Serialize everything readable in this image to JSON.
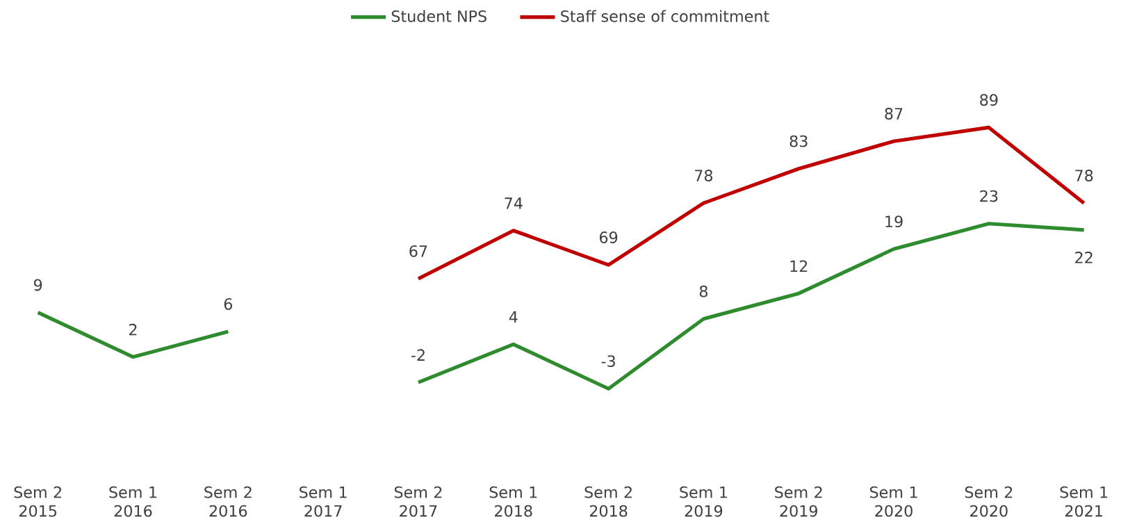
{
  "chart_data": {
    "type": "line",
    "categories": [
      "Sem 2 2015",
      "Sem 1 2016",
      "Sem 2 2016",
      "Sem 1 2017",
      "Sem 2 2017",
      "Sem 1 2018",
      "Sem 2 2018",
      "Sem 1 2019",
      "Sem 2 2019",
      "Sem 1 2020",
      "Sem 2 2020",
      "Sem 1 2021"
    ],
    "series": [
      {
        "name": "Student NPS",
        "color": "#2e8b2e",
        "values": [
          9,
          2,
          6,
          null,
          -2,
          4,
          -3,
          8,
          12,
          19,
          23,
          22
        ]
      },
      {
        "name": "Staff sense of commitment",
        "color": "#c00000",
        "axis": "y2",
        "values": [
          null,
          null,
          null,
          null,
          67,
          74,
          69,
          78,
          83,
          87,
          89,
          78
        ]
      }
    ],
    "tick_labels": "x",
    "data_labels": true,
    "legend": "top"
  }
}
